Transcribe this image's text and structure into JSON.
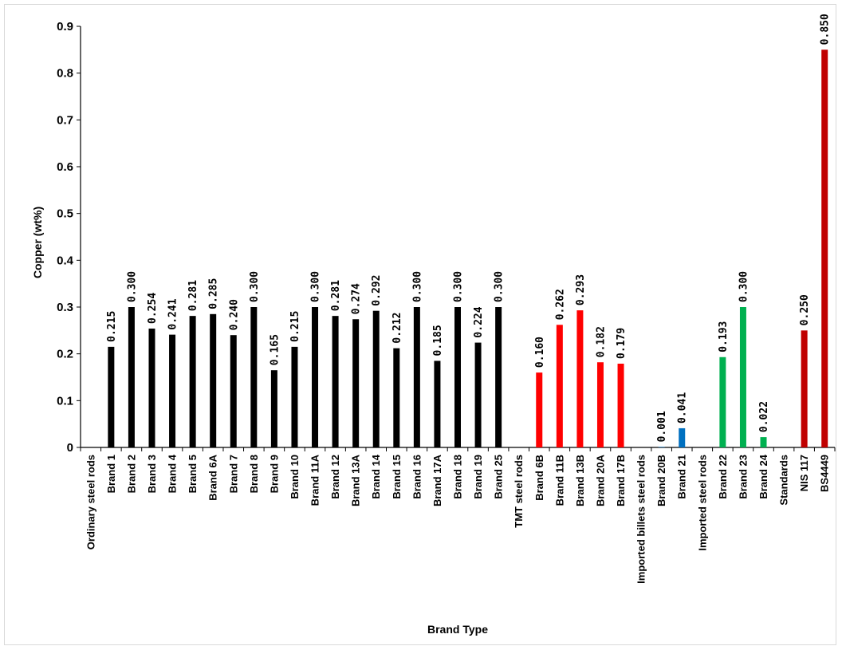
{
  "chart_data": {
    "type": "bar",
    "title": "",
    "xlabel": "Brand Type",
    "ylabel": "Copper (wt%)",
    "ylim": [
      0,
      0.9
    ],
    "yticks": [
      "0",
      "0.1",
      "0.2",
      "0.3",
      "0.4",
      "0.5",
      "0.6",
      "0.7",
      "0.8",
      "0.9"
    ],
    "grid": false,
    "legend": "none",
    "categories": [
      "Ordinary steel rods",
      "Brand 1",
      "Brand 2",
      "Brand 3",
      "Brand 4",
      "Brand 5",
      "Brand 6A",
      "Brand 7",
      "Brand 8",
      "Brand 9",
      "Brand 10",
      "Brand 11A",
      "Brand 12",
      "Brand 13A",
      "Brand 14",
      "Brand 15",
      "Brand 16",
      "Brand 17A",
      "Brand 18",
      "Brand 19",
      "Brand 25",
      "TMT steel rods",
      "Brand 6B",
      "Brand 11B",
      "Brand 13B",
      "Brand 20A",
      "Brand 17B",
      "Imported billets steel rods",
      "Brand 20B",
      "Brand 21",
      "Imported steel rods",
      "Brand 22",
      "Brand 23",
      "Brand 24",
      "Standards",
      "NIS 117",
      "BS4449"
    ],
    "values": [
      null,
      0.215,
      0.3,
      0.254,
      0.241,
      0.281,
      0.285,
      0.24,
      0.3,
      0.165,
      0.215,
      0.3,
      0.281,
      0.274,
      0.292,
      0.212,
      0.3,
      0.185,
      0.3,
      0.224,
      0.3,
      null,
      0.16,
      0.262,
      0.293,
      0.182,
      0.179,
      null,
      0.001,
      0.041,
      null,
      0.193,
      0.3,
      0.022,
      null,
      0.25,
      0.85
    ],
    "value_labels": [
      "",
      "0.215",
      "0.300",
      "0.254",
      "0.241",
      "0.281",
      "0.285",
      "0.240",
      "0.300",
      "0.165",
      "0.215",
      "0.300",
      "0.281",
      "0.274",
      "0.292",
      "0.212",
      "0.300",
      "0.185",
      "0.300",
      "0.224",
      "0.300",
      "",
      "0.160",
      "0.262",
      "0.293",
      "0.182",
      "0.179",
      "",
      "0.001",
      "0.041",
      "",
      "0.193",
      "0.300",
      "0.022",
      "",
      "0.250",
      "0.850"
    ],
    "bar_colors": [
      "",
      "#000000",
      "#000000",
      "#000000",
      "#000000",
      "#000000",
      "#000000",
      "#000000",
      "#000000",
      "#000000",
      "#000000",
      "#000000",
      "#000000",
      "#000000",
      "#000000",
      "#000000",
      "#000000",
      "#000000",
      "#000000",
      "#000000",
      "#000000",
      "",
      "#ff0000",
      "#ff0000",
      "#ff0000",
      "#ff0000",
      "#ff0000",
      "",
      "#0070c0",
      "#0070c0",
      "",
      "#00b050",
      "#00b050",
      "#00b050",
      "",
      "#c00000",
      "#c00000"
    ]
  }
}
